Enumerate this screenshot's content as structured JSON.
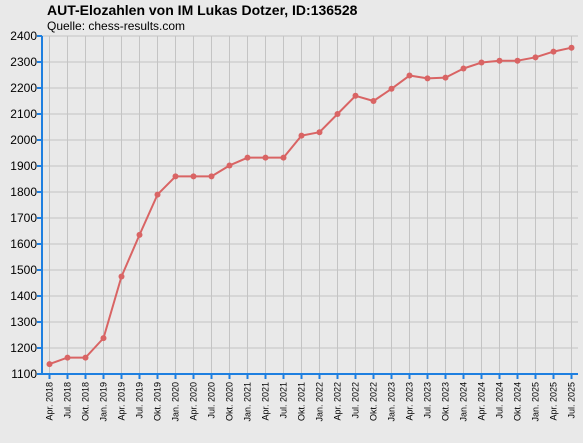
{
  "header": {
    "title": "AUT-Elozahlen von IM Lukas Dotzer, ID:136528",
    "subtitle": "Quelle: chess-results.com"
  },
  "colors": {
    "background": "#e9e9e9",
    "grid": "#c4c4c4",
    "axis": "#1e7fe0",
    "line": "#d96464"
  },
  "chart_data": {
    "type": "line",
    "title": "AUT-Elozahlen von IM Lukas Dotzer, ID:136528",
    "subtitle": "Quelle: chess-results.com",
    "xlabel": "",
    "ylabel": "",
    "ylim": [
      1100,
      2400
    ],
    "yticks": [
      1100,
      1200,
      1300,
      1400,
      1500,
      1600,
      1700,
      1800,
      1900,
      2000,
      2100,
      2200,
      2300,
      2400
    ],
    "grid": true,
    "categories": [
      "Apr. 2018",
      "Jul. 2018",
      "Okt. 2018",
      "Jan. 2019",
      "Apr. 2019",
      "Jul. 2019",
      "Okt. 2019",
      "Jan. 2020",
      "Apr. 2020",
      "Jul. 2020",
      "Okt. 2020",
      "Jan. 2021",
      "Apr. 2021",
      "Jul. 2021",
      "Okt. 2021",
      "Jan. 2022",
      "Apr. 2022",
      "Jul. 2022",
      "Okt. 2022",
      "Jan. 2023",
      "Apr. 2023",
      "Jul. 2023",
      "Okt. 2023",
      "Jan. 2024",
      "Apr. 2024",
      "Jul. 2024",
      "Okt. 2024",
      "Jan. 2025",
      "Apr. 2025",
      "Jul. 2025"
    ],
    "series": [
      {
        "values": [
          1138,
          1163,
          1163,
          1238,
          1475,
          1635,
          1790,
          1860,
          1860,
          1860,
          1902,
          1932,
          1932,
          1932,
          2017,
          2030,
          2100,
          2170,
          2150,
          2197,
          2248,
          2237,
          2240,
          2275,
          2298,
          2305,
          2305,
          2318,
          2340,
          2355
        ]
      }
    ]
  }
}
